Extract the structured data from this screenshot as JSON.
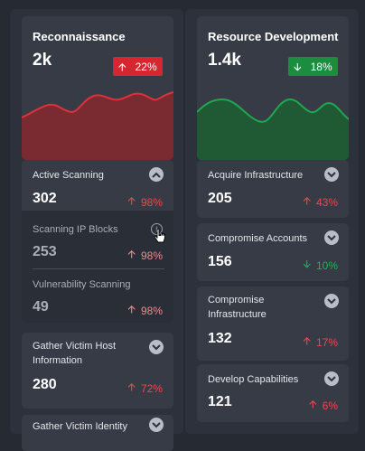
{
  "columns": [
    {
      "title": "Reconnaissance",
      "value": "2k",
      "badge": {
        "text": "22%",
        "direction": "up",
        "color": "#d7262f",
        "icon": "arrow-up-icon"
      },
      "sparkline_color": "#d7262f",
      "cards": [
        {
          "title": "Active Scanning",
          "value": "302",
          "delta": "98%",
          "direction": "up",
          "expanded": true,
          "children": [
            {
              "title": "Scanning IP Blocks",
              "value": "253",
              "delta": "98%",
              "direction": "up"
            },
            {
              "title": "Vulnerability Scanning",
              "value": "49",
              "delta": "98%",
              "direction": "up"
            }
          ]
        },
        {
          "title": "Gather Victim Host Information",
          "value": "280",
          "delta": "72%",
          "direction": "up"
        },
        {
          "title": "Gather Victim Identity",
          "value": "",
          "delta": "",
          "direction": "up"
        }
      ]
    },
    {
      "title": "Resource Development",
      "value": "1.4k",
      "badge": {
        "text": "18%",
        "direction": "down",
        "color": "#1b8d3f",
        "icon": "arrow-down-icon"
      },
      "sparkline_color": "#1b8d3f",
      "cards": [
        {
          "title": "Acquire Infrastructure",
          "value": "205",
          "delta": "43%",
          "direction": "up"
        },
        {
          "title": "Compromise Accounts",
          "value": "156",
          "delta": "10%",
          "direction": "down"
        },
        {
          "title": "Compromise Infrastructure",
          "value": "132",
          "delta": "17%",
          "direction": "up"
        },
        {
          "title": "Develop Capabilities",
          "value": "121",
          "delta": "6%",
          "direction": "up"
        }
      ]
    }
  ]
}
